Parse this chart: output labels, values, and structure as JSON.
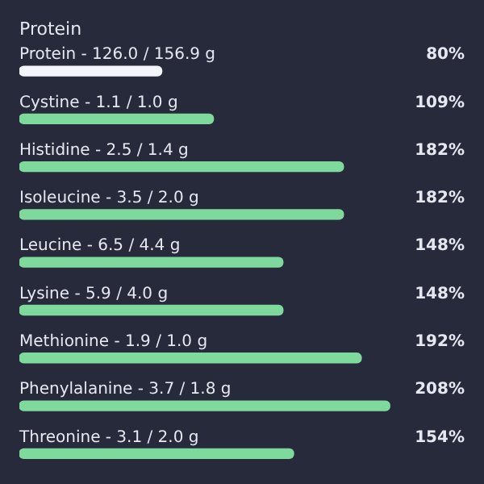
{
  "chart_data": {
    "type": "bar",
    "orientation": "horizontal",
    "title": "Protein",
    "categories": [
      "Protein - 126.0 / 156.9 g",
      "Cystine - 1.1 / 1.0 g",
      "Histidine - 2.5 / 1.4 g",
      "Isoleucine - 3.5 / 2.0 g",
      "Leucine - 6.5 / 4.4 g",
      "Lysine - 5.9 / 4.0 g",
      "Methionine - 1.9 / 1.0 g",
      "Phenylalanine - 3.7 / 1.8 g",
      "Threonine - 3.1 / 2.0 g"
    ],
    "values": [
      80,
      109,
      182,
      182,
      148,
      148,
      192,
      208,
      154
    ],
    "value_labels": [
      "80%",
      "109%",
      "182%",
      "182%",
      "148%",
      "148%",
      "192%",
      "208%",
      "154%"
    ],
    "colors": [
      "#f4f5fb",
      "#7fd99c",
      "#7fd99c",
      "#7fd99c",
      "#7fd99c",
      "#7fd99c",
      "#7fd99c",
      "#7fd99c",
      "#7fd99c"
    ],
    "legend": false
  }
}
